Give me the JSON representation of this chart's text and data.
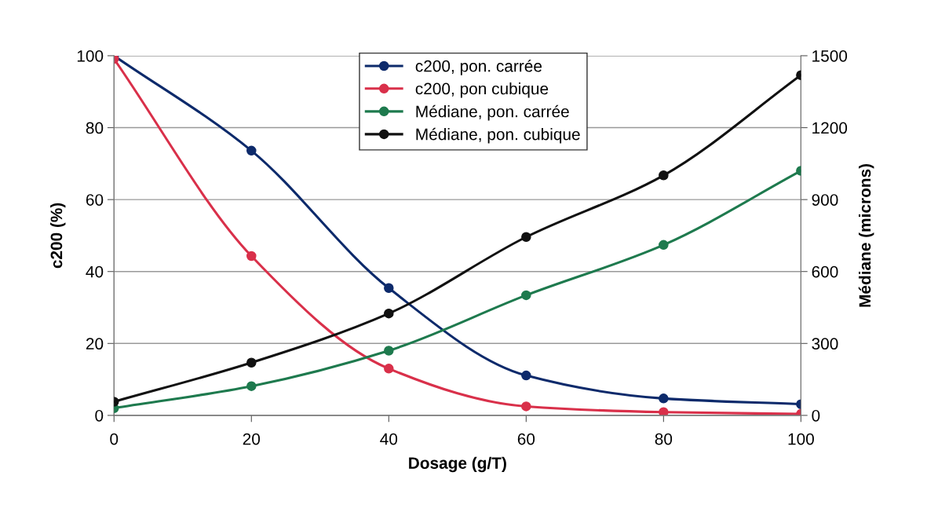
{
  "chart_data": {
    "type": "line",
    "xlabel": "Dosage (g/T)",
    "ylabel": "c200 (%)",
    "y2label": "Médiane (microns)",
    "x": [
      0,
      20,
      40,
      60,
      80,
      100
    ],
    "series": [
      {
        "name": "c200, pon. carrée",
        "color": "#0d2a6b",
        "values": [
          100,
          73.6,
          35.4,
          11.1,
          4.7,
          3.1
        ]
      },
      {
        "name": "c200, pon cubique",
        "color": "#d9304a",
        "values": [
          99.1,
          44.3,
          13.0,
          2.5,
          0.9,
          0.4
        ]
      },
      {
        "name": "Médiane, pon. carrée",
        "color": "#1e7a4e",
        "axis": "y2",
        "values": [
          30,
          122,
          270,
          501,
          711,
          1020
        ]
      },
      {
        "name": "Médiane, pon. cubique",
        "color": "#111111",
        "axis": "y2",
        "values": [
          57,
          220,
          425,
          744,
          1001,
          1419
        ]
      }
    ],
    "xlim": [
      0,
      100
    ],
    "xticks": [
      0,
      20,
      40,
      60,
      80,
      100
    ],
    "ylim": [
      0,
      100
    ],
    "yticks": [
      0,
      20,
      40,
      60,
      80,
      100
    ],
    "y2lim": [
      0,
      1500
    ],
    "y2ticks": [
      0,
      300,
      600,
      900,
      1200,
      1500
    ],
    "grid": "y",
    "legend": "top",
    "marker": "circle",
    "line_style": "solid"
  }
}
